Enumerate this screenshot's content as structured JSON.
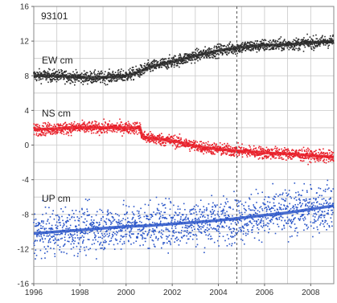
{
  "chart_data": {
    "type": "scatter",
    "station_label": "93101",
    "xlim": [
      1996,
      2009
    ],
    "ylim": [
      -16,
      16
    ],
    "x_ticks": [
      1996,
      1998,
      2000,
      2002,
      2004,
      2006,
      2008
    ],
    "y_ticks": [
      -16,
      -12,
      -8,
      -4,
      0,
      4,
      8,
      12,
      16
    ],
    "x_tick_labels": [
      "1996",
      "1998",
      "2000",
      "2002",
      "2004",
      "2006",
      "2008"
    ],
    "y_tick_labels": [
      "-16",
      "-12",
      "-8",
      "-4",
      "0",
      "4",
      "8",
      "12",
      "16"
    ],
    "grid": true,
    "event_line_x": 2004.8,
    "series": [
      {
        "name": "EW cm",
        "color": "#2b2b2b",
        "scatter": 0.35,
        "x": [
          1996.0,
          1997.0,
          1998.0,
          1999.0,
          2000.0,
          2000.4,
          2000.7,
          2001.0,
          2002.0,
          2003.0,
          2004.0,
          2005.0,
          2006.0,
          2007.0,
          2008.0,
          2009.0
        ],
        "y": [
          8.0,
          8.0,
          7.8,
          7.8,
          8.0,
          8.3,
          8.6,
          9.0,
          9.6,
          10.3,
          10.9,
          11.3,
          11.5,
          11.6,
          11.8,
          12.0
        ]
      },
      {
        "name": "NS cm",
        "color": "#e8202a",
        "scatter": 0.35,
        "x": [
          1996.0,
          1997.0,
          1998.0,
          1999.0,
          2000.0,
          2000.6,
          2000.7,
          2001.0,
          2002.0,
          2003.0,
          2004.0,
          2005.0,
          2006.0,
          2007.0,
          2008.0,
          2009.0
        ],
        "y": [
          1.8,
          1.9,
          2.0,
          2.0,
          2.0,
          2.0,
          1.0,
          0.8,
          0.5,
          -0.1,
          -0.5,
          -0.7,
          -0.9,
          -1.0,
          -1.2,
          -1.4
        ]
      },
      {
        "name": "UP cm",
        "color": "#2a55c8",
        "scatter": 1.3,
        "x": [
          1996.0,
          1997.0,
          1998.0,
          1999.0,
          2000.0,
          2001.0,
          2002.0,
          2003.0,
          2004.0,
          2005.0,
          2006.0,
          2007.0,
          2008.0,
          2009.0
        ],
        "y": [
          -10.2,
          -10.0,
          -9.8,
          -9.6,
          -9.4,
          -9.3,
          -9.1,
          -8.9,
          -8.7,
          -8.4,
          -8.1,
          -7.8,
          -7.4,
          -7.0
        ]
      }
    ]
  }
}
